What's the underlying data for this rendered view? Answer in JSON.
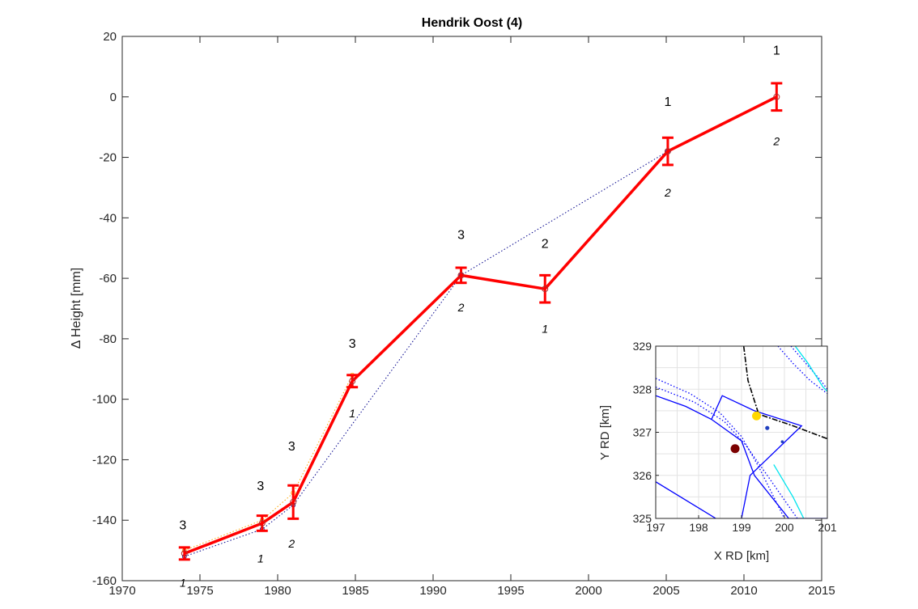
{
  "chart_data": [
    {
      "type": "line",
      "title": "Hendrik Oost (4)",
      "xlabel": "",
      "ylabel": "Δ Height [mm]",
      "xlim": [
        1970,
        2015
      ],
      "ylim": [
        -160,
        20
      ],
      "x_ticks": [
        1970,
        1975,
        1980,
        1985,
        1990,
        1995,
        2000,
        2005,
        2010,
        2015
      ],
      "y_ticks": [
        20,
        0,
        -20,
        -40,
        -60,
        -80,
        -100,
        -120,
        -140,
        -160
      ],
      "grid": false,
      "series": [
        {
          "style": "solid-thick",
          "color": "#ff0000",
          "x": [
            1974.0,
            1979.0,
            1981.0,
            1984.8,
            1991.8,
            1997.2,
            2005.1,
            2012.1
          ],
          "y": [
            -151,
            -141,
            -134,
            -94,
            -59,
            -63.5,
            -18,
            0
          ],
          "error": [
            2,
            2.5,
            5.5,
            2,
            2.5,
            4.5,
            4.5,
            4.5
          ]
        },
        {
          "style": "dotted",
          "color": "#00008b",
          "x": [
            1974.0,
            1979.0,
            1981.0,
            1991.8,
            2005.1
          ],
          "y": [
            -152,
            -143,
            -135,
            -59,
            -18
          ]
        },
        {
          "style": "dotted",
          "color": "#ffa500",
          "x": [
            1974.0,
            1979.0,
            1981.0,
            1984.8
          ],
          "y": [
            -150,
            -140,
            -131,
            -92
          ]
        }
      ],
      "annotations": [
        {
          "text": "3",
          "x": 1973.9,
          "y": -143,
          "style": "normal"
        },
        {
          "text": "1",
          "x": 1973.9,
          "y": -162,
          "style": "italic"
        },
        {
          "text": "3",
          "x": 1978.9,
          "y": -130,
          "style": "normal"
        },
        {
          "text": "1",
          "x": 1978.9,
          "y": -154,
          "style": "italic"
        },
        {
          "text": "3",
          "x": 1980.9,
          "y": -117,
          "style": "normal"
        },
        {
          "text": "2",
          "x": 1980.9,
          "y": -149,
          "style": "italic"
        },
        {
          "text": "3",
          "x": 1984.8,
          "y": -83,
          "style": "normal"
        },
        {
          "text": "1",
          "x": 1984.8,
          "y": -106,
          "style": "italic"
        },
        {
          "text": "3",
          "x": 1991.8,
          "y": -47,
          "style": "normal"
        },
        {
          "text": "2",
          "x": 1991.8,
          "y": -71,
          "style": "italic"
        },
        {
          "text": "2",
          "x": 1997.2,
          "y": -50,
          "style": "normal"
        },
        {
          "text": "1",
          "x": 1997.2,
          "y": -78,
          "style": "italic"
        },
        {
          "text": "1",
          "x": 2005.1,
          "y": -3,
          "style": "normal"
        },
        {
          "text": "2",
          "x": 2005.1,
          "y": -33,
          "style": "italic"
        },
        {
          "text": "1",
          "x": 2012.1,
          "y": 14,
          "style": "normal"
        },
        {
          "text": "2",
          "x": 2012.1,
          "y": -16,
          "style": "italic"
        }
      ]
    },
    {
      "type": "scatter",
      "title": "",
      "xlabel": "X RD [km]",
      "ylabel": "Y RD [km]",
      "xlim": [
        197,
        201
      ],
      "ylim": [
        325,
        329
      ],
      "x_ticks": [
        "197",
        "198",
        "199",
        "200",
        "201"
      ],
      "y_ticks": [
        "329",
        "328",
        "327",
        "326",
        "325"
      ],
      "grid": true,
      "points": [
        {
          "x": 199.35,
          "y": 327.38,
          "color": "#ffd700",
          "size": "large"
        },
        {
          "x": 198.85,
          "y": 326.62,
          "color": "#7b0000",
          "size": "large"
        },
        {
          "x": 199.6,
          "y": 327.1,
          "color": "#1f3fbf",
          "size": "small"
        },
        {
          "x": 199.95,
          "y": 326.78,
          "color": "#1f3fbf",
          "size": "tiny"
        }
      ],
      "lines": [
        {
          "color": "#0000ff",
          "style": "solid",
          "x": [
            197,
            197.7,
            198.3,
            199.0,
            199.3,
            200.1,
            201.0
          ],
          "y": [
            327.85,
            327.6,
            327.3,
            326.8,
            326.0,
            325.0,
            325.0
          ]
        },
        {
          "color": "#0000ff",
          "style": "solid",
          "x": [
            198.3,
            198.55,
            199.3
          ],
          "y": [
            327.3,
            327.85,
            327.5
          ]
        },
        {
          "color": "#0000ff",
          "style": "solid",
          "x": [
            199.3,
            200.4,
            199.2,
            199.0
          ],
          "y": [
            327.5,
            327.15,
            326.0,
            325.0
          ]
        },
        {
          "color": "#0000ff",
          "style": "solid",
          "x": [
            197,
            198.4
          ],
          "y": [
            325.85,
            325.0
          ]
        },
        {
          "color": "#0000ff",
          "style": "dotted",
          "x": [
            197,
            197.8,
            198.5,
            199.0,
            199.4,
            200.0
          ],
          "y": [
            328.25,
            327.9,
            327.45,
            326.9,
            326.2,
            325.0
          ]
        },
        {
          "color": "#0000ff",
          "style": "dotted",
          "x": [
            197,
            197.9,
            198.6,
            199.1,
            199.6,
            200.3
          ],
          "y": [
            328.05,
            327.7,
            327.25,
            326.7,
            326.0,
            325.0
          ]
        },
        {
          "color": "#0000ff",
          "style": "dotted",
          "x": [
            199.85,
            200.2,
            200.6,
            201.0
          ],
          "y": [
            329.0,
            328.6,
            328.2,
            327.9
          ]
        },
        {
          "color": "#0000ff",
          "style": "dotted",
          "x": [
            200.15,
            200.5,
            200.85,
            201.0
          ],
          "y": [
            329.0,
            328.6,
            328.2,
            328.0
          ]
        },
        {
          "color": "#00e5ee",
          "style": "solid",
          "x": [
            200.25,
            200.55,
            200.9,
            201.0
          ],
          "y": [
            329.0,
            328.6,
            328.05,
            327.95
          ]
        },
        {
          "color": "#00e5ee",
          "style": "solid",
          "x": [
            199.75,
            200.2,
            200.45
          ],
          "y": [
            326.25,
            325.5,
            325.0
          ]
        },
        {
          "color": "#000000",
          "style": "dashdot",
          "x": [
            199.05,
            199.15,
            199.4,
            200.2,
            201.0
          ],
          "y": [
            329.0,
            328.2,
            327.42,
            327.15,
            326.85
          ]
        }
      ]
    }
  ]
}
